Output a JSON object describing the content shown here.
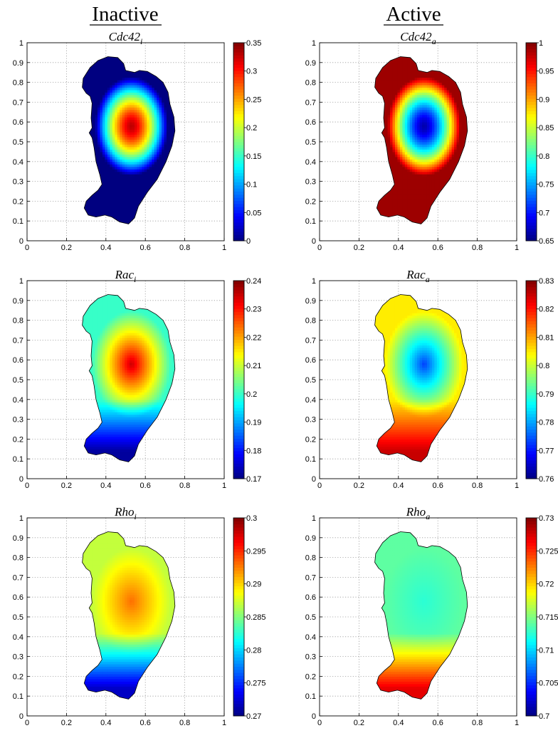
{
  "columns": [
    {
      "title": "Inactive"
    },
    {
      "title": "Active"
    }
  ],
  "colormap": "jet",
  "chart_data": [
    {
      "type": "heatmap",
      "title": "Cdc42",
      "subscript": "i",
      "xlim": [
        0,
        1
      ],
      "ylim": [
        0,
        1
      ],
      "xticks": [
        "0",
        "0.2",
        "0.4",
        "0.6",
        "0.8",
        "1"
      ],
      "yticks": [
        "0",
        "0.1",
        "0.2",
        "0.3",
        "0.4",
        "0.5",
        "0.6",
        "0.7",
        "0.8",
        "0.9",
        "1"
      ],
      "colorbar": {
        "min": 0,
        "max": 0.35,
        "ticks": [
          "0",
          "0.05",
          "0.1",
          "0.15",
          "0.2",
          "0.25",
          "0.3",
          "0.35"
        ]
      },
      "field": {
        "profile": "radial",
        "center_value": 0.33,
        "edge_value": 0.0
      },
      "grid": true
    },
    {
      "type": "heatmap",
      "title": "Cdc42",
      "subscript": "a",
      "xlim": [
        0,
        1
      ],
      "ylim": [
        0,
        1
      ],
      "xticks": [
        "0",
        "0.2",
        "0.4",
        "0.6",
        "0.8",
        "1"
      ],
      "yticks": [
        "0",
        "0.1",
        "0.2",
        "0.3",
        "0.4",
        "0.5",
        "0.6",
        "0.7",
        "0.8",
        "0.9",
        "1"
      ],
      "colorbar": {
        "min": 0.65,
        "max": 1,
        "ticks": [
          "0.65",
          "0.7",
          "0.75",
          "0.8",
          "0.85",
          "0.9",
          "0.95",
          "1"
        ]
      },
      "field": {
        "profile": "radial",
        "center_value": 0.665,
        "edge_value": 0.99
      },
      "grid": true
    },
    {
      "type": "heatmap",
      "title": "Rac",
      "subscript": "i",
      "xlim": [
        0,
        1
      ],
      "ylim": [
        0,
        1
      ],
      "xticks": [
        "0",
        "0.2",
        "0.4",
        "0.6",
        "0.8",
        "1"
      ],
      "yticks": [
        "0",
        "0.1",
        "0.2",
        "0.3",
        "0.4",
        "0.5",
        "0.6",
        "0.7",
        "0.8",
        "0.9",
        "1"
      ],
      "colorbar": {
        "min": 0.17,
        "max": 0.24,
        "ticks": [
          "0.17",
          "0.18",
          "0.19",
          "0.2",
          "0.21",
          "0.22",
          "0.23",
          "0.24"
        ]
      },
      "field": {
        "profile": "radial-tail",
        "center_value": 0.235,
        "edge_value": 0.2,
        "tail_value": 0.172
      },
      "grid": true
    },
    {
      "type": "heatmap",
      "title": "Rac",
      "subscript": "a",
      "xlim": [
        0,
        1
      ],
      "ylim": [
        0,
        1
      ],
      "xticks": [
        "0",
        "0.2",
        "0.4",
        "0.6",
        "0.8",
        "1"
      ],
      "yticks": [
        "0",
        "0.1",
        "0.2",
        "0.3",
        "0.4",
        "0.5",
        "0.6",
        "0.7",
        "0.8",
        "0.9",
        "1"
      ],
      "colorbar": {
        "min": 0.76,
        "max": 0.83,
        "ticks": [
          "0.76",
          "0.77",
          "0.78",
          "0.79",
          "0.8",
          "0.81",
          "0.82",
          "0.83"
        ]
      },
      "field": {
        "profile": "radial-tail",
        "center_value": 0.773,
        "edge_value": 0.805,
        "tail_value": 0.825
      },
      "grid": true
    },
    {
      "type": "heatmap",
      "title": "Rho",
      "subscript": "i",
      "xlim": [
        0,
        1
      ],
      "ylim": [
        0,
        1
      ],
      "xticks": [
        "0",
        "0.2",
        "0.4",
        "0.6",
        "0.8",
        "1"
      ],
      "yticks": [
        "0",
        "0.1",
        "0.2",
        "0.3",
        "0.4",
        "0.5",
        "0.6",
        "0.7",
        "0.8",
        "0.9",
        "1"
      ],
      "colorbar": {
        "min": 0.27,
        "max": 0.3,
        "ticks": [
          "0.27",
          "0.275",
          "0.28",
          "0.285",
          "0.29",
          "0.295",
          "0.3"
        ]
      },
      "field": {
        "profile": "gradient",
        "center_value": 0.293,
        "edge_value": 0.287,
        "tail_value": 0.272
      },
      "grid": true
    },
    {
      "type": "heatmap",
      "title": "Rho",
      "subscript": "a",
      "xlim": [
        0,
        1
      ],
      "ylim": [
        0,
        1
      ],
      "xticks": [
        "0",
        "0.2",
        "0.4",
        "0.6",
        "0.8",
        "1"
      ],
      "yticks": [
        "0",
        "0.1",
        "0.2",
        "0.3",
        "0.4",
        "0.5",
        "0.6",
        "0.7",
        "0.8",
        "0.9",
        "1"
      ],
      "colorbar": {
        "min": 0.7,
        "max": 0.73,
        "ticks": [
          "0.7",
          "0.705",
          "0.71",
          "0.715",
          "0.72",
          "0.725",
          "0.73"
        ]
      },
      "field": {
        "profile": "gradient",
        "center_value": 0.7125,
        "edge_value": 0.714,
        "tail_value": 0.727
      },
      "grid": true
    }
  ],
  "cell_shape": [
    [
      0.515,
      0.085
    ],
    [
      0.545,
      0.115
    ],
    [
      0.565,
      0.175
    ],
    [
      0.61,
      0.245
    ],
    [
      0.66,
      0.31
    ],
    [
      0.705,
      0.4
    ],
    [
      0.735,
      0.48
    ],
    [
      0.75,
      0.555
    ],
    [
      0.745,
      0.625
    ],
    [
      0.725,
      0.69
    ],
    [
      0.715,
      0.75
    ],
    [
      0.69,
      0.8
    ],
    [
      0.655,
      0.83
    ],
    [
      0.61,
      0.855
    ],
    [
      0.57,
      0.86
    ],
    [
      0.545,
      0.85
    ],
    [
      0.5,
      0.86
    ],
    [
      0.49,
      0.895
    ],
    [
      0.46,
      0.925
    ],
    [
      0.41,
      0.93
    ],
    [
      0.36,
      0.91
    ],
    [
      0.32,
      0.875
    ],
    [
      0.285,
      0.82
    ],
    [
      0.28,
      0.775
    ],
    [
      0.3,
      0.745
    ],
    [
      0.32,
      0.73
    ],
    [
      0.33,
      0.695
    ],
    [
      0.325,
      0.62
    ],
    [
      0.33,
      0.57
    ],
    [
      0.315,
      0.545
    ],
    [
      0.33,
      0.52
    ],
    [
      0.34,
      0.47
    ],
    [
      0.35,
      0.4
    ],
    [
      0.37,
      0.33
    ],
    [
      0.38,
      0.285
    ],
    [
      0.36,
      0.255
    ],
    [
      0.33,
      0.23
    ],
    [
      0.3,
      0.2
    ],
    [
      0.29,
      0.165
    ],
    [
      0.31,
      0.13
    ],
    [
      0.35,
      0.12
    ],
    [
      0.395,
      0.13
    ],
    [
      0.43,
      0.12
    ],
    [
      0.47,
      0.095
    ]
  ]
}
